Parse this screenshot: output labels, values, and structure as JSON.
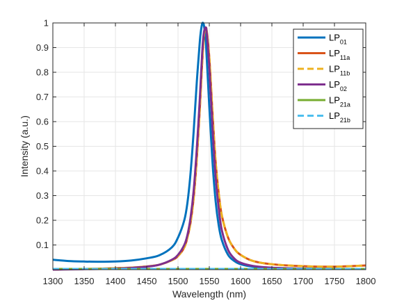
{
  "chart_data": {
    "type": "line",
    "xlabel": "Wavelength (nm)",
    "ylabel": "Intensity (a.u.)",
    "xlim": [
      1300,
      1800
    ],
    "ylim": [
      0,
      1
    ],
    "xticks": [
      1300,
      1350,
      1400,
      1450,
      1500,
      1550,
      1600,
      1650,
      1700,
      1750,
      1800
    ],
    "yticks": [
      0.1,
      0.2,
      0.3,
      0.4,
      0.5,
      0.6,
      0.7,
      0.8,
      0.9,
      1
    ],
    "grid": true,
    "legend_position": "top-right",
    "x": [
      1300,
      1325,
      1350,
      1375,
      1400,
      1425,
      1450,
      1470,
      1490,
      1500,
      1510,
      1515,
      1520,
      1525,
      1530,
      1535,
      1538,
      1540,
      1542,
      1545,
      1550,
      1555,
      1560,
      1565,
      1570,
      1580,
      1590,
      1600,
      1620,
      1650,
      1700,
      1750,
      1800
    ],
    "series": [
      {
        "name": "LP01",
        "label_main": "LP",
        "label_sub": "01",
        "color": "#0072BD",
        "dash": "solid",
        "values": [
          0.04,
          0.035,
          0.033,
          0.032,
          0.033,
          0.037,
          0.046,
          0.058,
          0.09,
          0.13,
          0.2,
          0.27,
          0.39,
          0.56,
          0.76,
          0.93,
          0.99,
          1.0,
          0.98,
          0.9,
          0.66,
          0.44,
          0.28,
          0.18,
          0.12,
          0.06,
          0.035,
          0.022,
          0.012,
          0.007,
          0.004,
          0.003,
          0.003
        ]
      },
      {
        "name": "LP11a",
        "label_main": "LP",
        "label_sub": "11a",
        "color": "#D95319",
        "dash": "solid",
        "values": [
          0.0,
          0.002,
          0.003,
          0.004,
          0.006,
          0.008,
          0.013,
          0.02,
          0.038,
          0.055,
          0.09,
          0.13,
          0.19,
          0.29,
          0.45,
          0.66,
          0.81,
          0.9,
          0.96,
          0.98,
          0.86,
          0.64,
          0.44,
          0.31,
          0.22,
          0.13,
          0.085,
          0.06,
          0.035,
          0.022,
          0.014,
          0.012,
          0.017
        ]
      },
      {
        "name": "LP11b",
        "label_main": "LP",
        "label_sub": "11b",
        "color": "#EDB120",
        "dash": "dashed",
        "values": [
          0.0,
          0.002,
          0.003,
          0.004,
          0.006,
          0.008,
          0.013,
          0.02,
          0.038,
          0.055,
          0.09,
          0.13,
          0.19,
          0.29,
          0.45,
          0.66,
          0.81,
          0.9,
          0.96,
          0.98,
          0.86,
          0.64,
          0.44,
          0.31,
          0.22,
          0.13,
          0.085,
          0.06,
          0.035,
          0.022,
          0.014,
          0.012,
          0.017
        ]
      },
      {
        "name": "LP02",
        "label_main": "LP",
        "label_sub": "02",
        "color": "#7E2F8E",
        "dash": "solid",
        "values": [
          0.0,
          0.001,
          0.002,
          0.003,
          0.004,
          0.007,
          0.012,
          0.02,
          0.04,
          0.06,
          0.1,
          0.14,
          0.21,
          0.32,
          0.49,
          0.7,
          0.85,
          0.93,
          0.97,
          0.98,
          0.82,
          0.58,
          0.38,
          0.25,
          0.16,
          0.08,
          0.045,
          0.028,
          0.015,
          0.008,
          0.004,
          0.003,
          0.003
        ]
      },
      {
        "name": "LP21a",
        "label_main": "LP",
        "label_sub": "21a",
        "color": "#77AC30",
        "dash": "solid",
        "values": [
          0.003,
          0.003,
          0.003,
          0.003,
          0.003,
          0.003,
          0.003,
          0.003,
          0.003,
          0.003,
          0.003,
          0.003,
          0.003,
          0.003,
          0.003,
          0.003,
          0.003,
          0.003,
          0.003,
          0.003,
          0.003,
          0.003,
          0.003,
          0.003,
          0.003,
          0.003,
          0.003,
          0.003,
          0.003,
          0.003,
          0.003,
          0.003,
          0.003
        ]
      },
      {
        "name": "LP21b",
        "label_main": "LP",
        "label_sub": "21b",
        "color": "#4DBEEE",
        "dash": "dashed",
        "values": [
          0.003,
          0.003,
          0.003,
          0.003,
          0.003,
          0.003,
          0.003,
          0.003,
          0.003,
          0.003,
          0.003,
          0.003,
          0.003,
          0.003,
          0.003,
          0.003,
          0.003,
          0.003,
          0.003,
          0.003,
          0.003,
          0.003,
          0.003,
          0.003,
          0.003,
          0.003,
          0.003,
          0.003,
          0.003,
          0.003,
          0.003,
          0.003,
          0.003
        ]
      }
    ]
  }
}
